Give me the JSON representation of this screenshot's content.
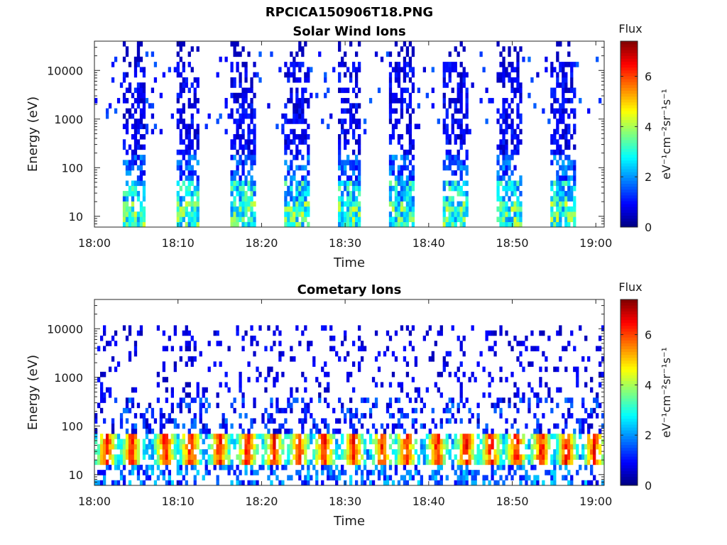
{
  "figure": {
    "title": "RPCICA150906T18.PNG"
  },
  "chart_data": [
    {
      "type": "heatmap",
      "title": "Solar Wind Ions",
      "xlabel": "Time",
      "ylabel": "Energy (eV)",
      "x_ticks": [
        "18:00",
        "18:10",
        "18:20",
        "18:30",
        "18:40",
        "18:50",
        "19:00"
      ],
      "y_ticks": [
        "10",
        "100",
        "1000",
        "10000"
      ],
      "y_scale": "log",
      "ylim": [
        6,
        40000
      ],
      "xlim": [
        "18:00",
        "19:01"
      ],
      "colorbar": {
        "title": "Flux",
        "label": "eV⁻¹cm⁻²sr⁻¹s⁻¹",
        "ticks": [
          "0",
          "2",
          "4",
          "6"
        ],
        "range": [
          0,
          7.4
        ],
        "colormap": "jet"
      },
      "bursts_min": [
        [
          3.3,
          6.1
        ],
        [
          9.7,
          12.6
        ],
        [
          16.1,
          19.2
        ],
        [
          22.6,
          25.7
        ],
        [
          29.0,
          32.0
        ],
        [
          35.4,
          38.4
        ],
        [
          41.7,
          44.8
        ],
        [
          48.1,
          51.2
        ],
        [
          54.5,
          57.6
        ]
      ]
    },
    {
      "type": "heatmap",
      "title": "Cometary Ions",
      "xlabel": "Time",
      "ylabel": "Energy (eV)",
      "x_ticks": [
        "18:00",
        "18:10",
        "18:20",
        "18:30",
        "18:40",
        "18:50",
        "19:00"
      ],
      "y_ticks": [
        "10",
        "100",
        "1000",
        "10000"
      ],
      "y_scale": "log",
      "ylim": [
        6,
        40000
      ],
      "xlim": [
        "18:00",
        "19:01"
      ],
      "colorbar": {
        "title": "Flux",
        "label": "eV⁻¹cm⁻²sr⁻¹s⁻¹",
        "ticks": [
          "0",
          "2",
          "4",
          "6"
        ],
        "range": [
          0,
          7.4
        ],
        "colormap": "jet"
      },
      "peaks_min": [
        1.5,
        4.5,
        8.5,
        11.5,
        15.0,
        18.3,
        21.5,
        24.5,
        27.5,
        31.0,
        34.5,
        37.3,
        41.0,
        44.5,
        47.5,
        50.5,
        53.5,
        56.5,
        59.8
      ]
    }
  ]
}
